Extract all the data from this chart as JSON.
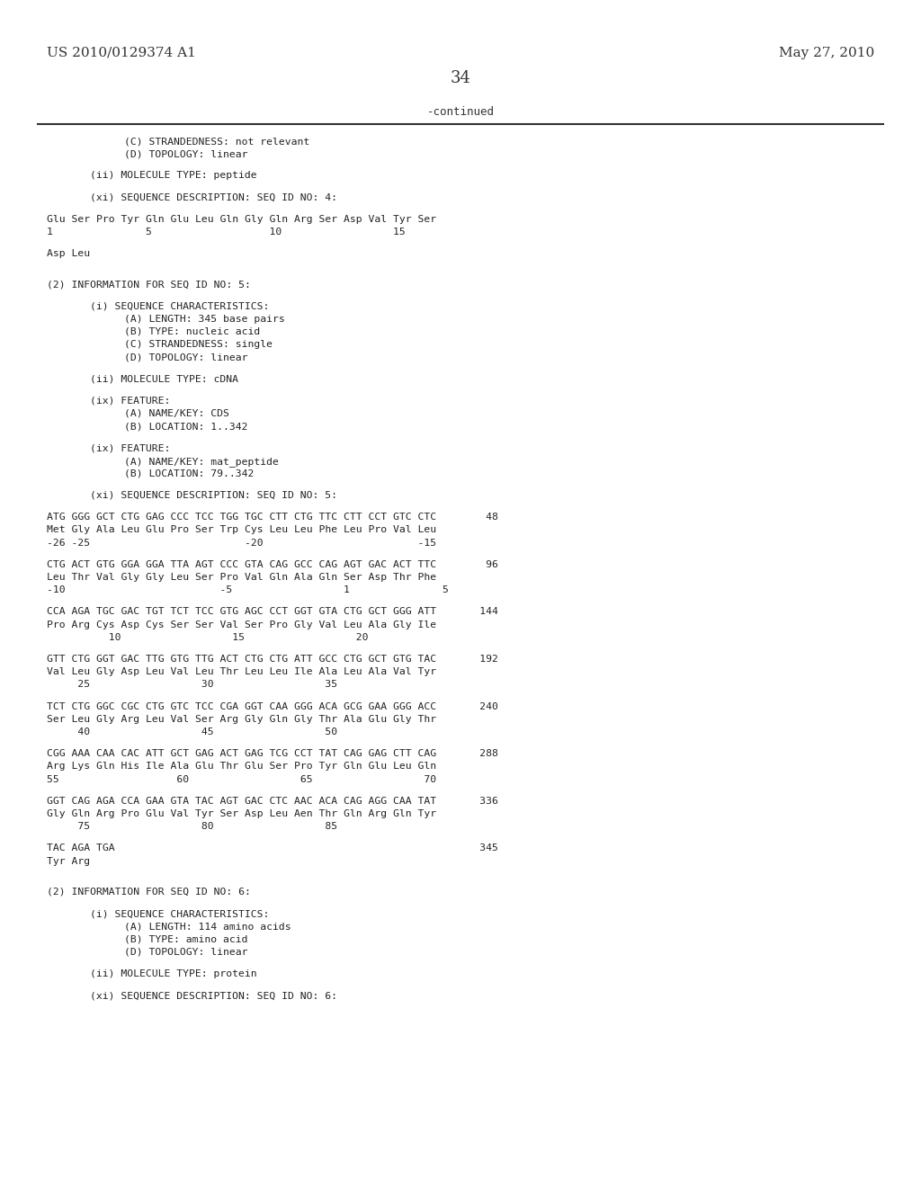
{
  "bg_color": "#ffffff",
  "header_left": "US 2010/0129374 A1",
  "header_right": "May 27, 2010",
  "page_number": "34",
  "continued_label": "-continued",
  "content": [
    {
      "indent": 2,
      "text": "(C) STRANDEDNESS: not relevant"
    },
    {
      "indent": 2,
      "text": "(D) TOPOLOGY: linear"
    },
    {
      "indent": -1,
      "text": ""
    },
    {
      "indent": 1,
      "text": "(ii) MOLECULE TYPE: peptide"
    },
    {
      "indent": -1,
      "text": ""
    },
    {
      "indent": 1,
      "text": "(xi) SEQUENCE DESCRIPTION: SEQ ID NO: 4:"
    },
    {
      "indent": -1,
      "text": ""
    },
    {
      "indent": 0,
      "text": "Glu Ser Pro Tyr Gln Glu Leu Gln Gly Gln Arg Ser Asp Val Tyr Ser"
    },
    {
      "indent": 0,
      "text": "1               5                   10                  15"
    },
    {
      "indent": -1,
      "text": ""
    },
    {
      "indent": 0,
      "text": "Asp Leu"
    },
    {
      "indent": -1,
      "text": ""
    },
    {
      "indent": -1,
      "text": ""
    },
    {
      "indent": 0,
      "text": "(2) INFORMATION FOR SEQ ID NO: 5:"
    },
    {
      "indent": -1,
      "text": ""
    },
    {
      "indent": 1,
      "text": "(i) SEQUENCE CHARACTERISTICS:"
    },
    {
      "indent": 2,
      "text": "(A) LENGTH: 345 base pairs"
    },
    {
      "indent": 2,
      "text": "(B) TYPE: nucleic acid"
    },
    {
      "indent": 2,
      "text": "(C) STRANDEDNESS: single"
    },
    {
      "indent": 2,
      "text": "(D) TOPOLOGY: linear"
    },
    {
      "indent": -1,
      "text": ""
    },
    {
      "indent": 1,
      "text": "(ii) MOLECULE TYPE: cDNA"
    },
    {
      "indent": -1,
      "text": ""
    },
    {
      "indent": 1,
      "text": "(ix) FEATURE:"
    },
    {
      "indent": 2,
      "text": "(A) NAME/KEY: CDS"
    },
    {
      "indent": 2,
      "text": "(B) LOCATION: 1..342"
    },
    {
      "indent": -1,
      "text": ""
    },
    {
      "indent": 1,
      "text": "(ix) FEATURE:"
    },
    {
      "indent": 2,
      "text": "(A) NAME/KEY: mat_peptide"
    },
    {
      "indent": 2,
      "text": "(B) LOCATION: 79..342"
    },
    {
      "indent": -1,
      "text": ""
    },
    {
      "indent": 1,
      "text": "(xi) SEQUENCE DESCRIPTION: SEQ ID NO: 5:"
    },
    {
      "indent": -1,
      "text": ""
    },
    {
      "indent": 0,
      "text": "ATG GGG GCT CTG GAG CCC TCC TGG TGC CTT CTG TTC CTT CCT GTC CTC        48"
    },
    {
      "indent": 0,
      "text": "Met Gly Ala Leu Glu Pro Ser Trp Cys Leu Leu Phe Leu Pro Val Leu"
    },
    {
      "indent": 0,
      "text": "-26 -25                         -20                         -15"
    },
    {
      "indent": -1,
      "text": ""
    },
    {
      "indent": 0,
      "text": "CTG ACT GTG GGA GGA TTA AGT CCC GTA CAG GCC CAG AGT GAC ACT TTC        96"
    },
    {
      "indent": 0,
      "text": "Leu Thr Val Gly Gly Leu Ser Pro Val Gln Ala Gln Ser Asp Thr Phe"
    },
    {
      "indent": 0,
      "text": "-10                         -5                  1               5"
    },
    {
      "indent": -1,
      "text": ""
    },
    {
      "indent": 0,
      "text": "CCA AGA TGC GAC TGT TCT TCC GTG AGC CCT GGT GTA CTG GCT GGG ATT       144"
    },
    {
      "indent": 0,
      "text": "Pro Arg Cys Asp Cys Ser Ser Val Ser Pro Gly Val Leu Ala Gly Ile"
    },
    {
      "indent": 0,
      "text": "          10                  15                  20"
    },
    {
      "indent": -1,
      "text": ""
    },
    {
      "indent": 0,
      "text": "GTT CTG GGT GAC TTG GTG TTG ACT CTG CTG ATT GCC CTG GCT GTG TAC       192"
    },
    {
      "indent": 0,
      "text": "Val Leu Gly Asp Leu Val Leu Thr Leu Leu Ile Ala Leu Ala Val Tyr"
    },
    {
      "indent": 0,
      "text": "     25                  30                  35"
    },
    {
      "indent": -1,
      "text": ""
    },
    {
      "indent": 0,
      "text": "TCT CTG GGC CGC CTG GTC TCC CGA GGT CAA GGG ACA GCG GAA GGG ACC       240"
    },
    {
      "indent": 0,
      "text": "Ser Leu Gly Arg Leu Val Ser Arg Gly Gln Gly Thr Ala Glu Gly Thr"
    },
    {
      "indent": 0,
      "text": "     40                  45                  50"
    },
    {
      "indent": -1,
      "text": ""
    },
    {
      "indent": 0,
      "text": "CGG AAA CAA CAC ATT GCT GAG ACT GAG TCG CCT TAT CAG GAG CTT CAG       288"
    },
    {
      "indent": 0,
      "text": "Arg Lys Gln His Ile Ala Glu Thr Glu Ser Pro Tyr Gln Glu Leu Gln"
    },
    {
      "indent": 0,
      "text": "55                   60                  65                  70"
    },
    {
      "indent": -1,
      "text": ""
    },
    {
      "indent": 0,
      "text": "GGT CAG AGA CCA GAA GTA TAC AGT GAC CTC AAC ACA CAG AGG CAA TAT       336"
    },
    {
      "indent": 0,
      "text": "Gly Gln Arg Pro Glu Val Tyr Ser Asp Leu Aen Thr Gln Arg Gln Tyr"
    },
    {
      "indent": 0,
      "text": "     75                  80                  85"
    },
    {
      "indent": -1,
      "text": ""
    },
    {
      "indent": 0,
      "text": "TAC AGA TGA                                                           345"
    },
    {
      "indent": 0,
      "text": "Tyr Arg"
    },
    {
      "indent": -1,
      "text": ""
    },
    {
      "indent": -1,
      "text": ""
    },
    {
      "indent": 0,
      "text": "(2) INFORMATION FOR SEQ ID NO: 6:"
    },
    {
      "indent": -1,
      "text": ""
    },
    {
      "indent": 1,
      "text": "(i) SEQUENCE CHARACTERISTICS:"
    },
    {
      "indent": 2,
      "text": "(A) LENGTH: 114 amino acids"
    },
    {
      "indent": 2,
      "text": "(B) TYPE: amino acid"
    },
    {
      "indent": 2,
      "text": "(D) TOPOLOGY: linear"
    },
    {
      "indent": -1,
      "text": ""
    },
    {
      "indent": 1,
      "text": "(ii) MOLECULE TYPE: protein"
    },
    {
      "indent": -1,
      "text": ""
    },
    {
      "indent": 1,
      "text": "(xi) SEQUENCE DESCRIPTION: SEQ ID NO: 6:"
    }
  ]
}
